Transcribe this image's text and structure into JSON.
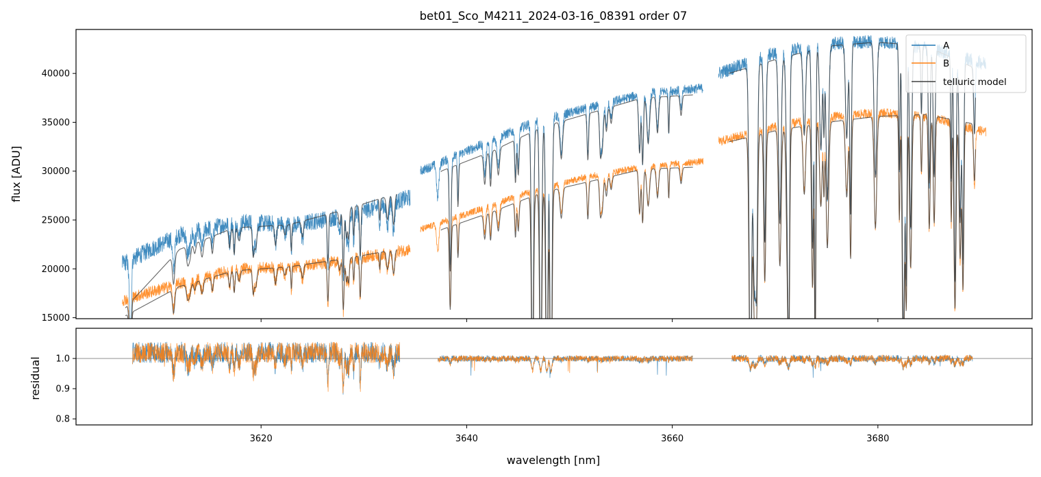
{
  "chart_data": {
    "type": "line",
    "title": "bet01_Sco_M4211_2024-03-16_08391  order 07",
    "xlabel": "wavelength [nm]",
    "xlim": [
      3602,
      3695
    ],
    "xticks": [
      3620,
      3640,
      3660,
      3680
    ],
    "xtick_labels": [
      "3620",
      "3640",
      "3660",
      "3680"
    ],
    "legend_location": "upper right",
    "colors": {
      "A": "#1f77b4",
      "B": "#ff7f0e",
      "telluric": "#404040",
      "refline": "#808080"
    },
    "panels": [
      {
        "name": "flux",
        "ylabel": "flux [ADU]",
        "ylim": [
          14900,
          44500
        ],
        "yticks": [
          15000,
          20000,
          25000,
          30000,
          35000,
          40000
        ],
        "ytick_labels": [
          "15000",
          "20000",
          "25000",
          "30000",
          "35000",
          "40000"
        ],
        "segments": [
          {
            "x0": 3606.5,
            "x1": 3634.5,
            "A": [
              20500,
              23500,
              24800,
              24500,
              25600,
              27300
            ],
            "B": [
              16800,
              18500,
              20000,
              20200,
              21000,
              22000
            ]
          },
          {
            "x0": 3635.5,
            "x1": 3663.0,
            "A": [
              30000,
              32500,
              35000,
              36500,
              38000,
              38500
            ],
            "B": [
              24000,
              26000,
              28000,
              29500,
              30500,
              31000
            ]
          },
          {
            "x0": 3664.5,
            "x1": 3690.5,
            "A": [
              40000,
              42000,
              43000,
              43300,
              42500,
              41000
            ],
            "B": [
              33000,
              34500,
              35500,
              36000,
              35500,
              34000
            ]
          }
        ],
        "telluric_model": [
          {
            "x0": 3606.8,
            "x1": 3633.2,
            "A": [
              16000,
              22000,
              24200,
              24500,
              26000,
              27700
            ],
            "B": [
              15200,
              18200,
              19800,
              20200,
              21000,
              22000
            ]
          },
          {
            "x0": 3637.5,
            "x1": 3662.0,
            "A": [
              30000,
              32000,
              34500,
              36000,
              37500,
              37800
            ],
            "B": [
              24000,
              25800,
              27800,
              29000,
              30200,
              30400
            ]
          },
          {
            "x0": 3665.5,
            "x1": 3689.5,
            "A": [
              40000,
              41500,
              42800,
              43200,
              42800,
              40500
            ],
            "B": [
              33000,
              34200,
              35000,
              35600,
              35800,
              34800
            ]
          }
        ],
        "legend": [
          "A",
          "B",
          "telluric model"
        ]
      },
      {
        "name": "residual",
        "ylabel": "residual",
        "ylim": [
          0.78,
          1.1
        ],
        "yticks": [
          0.8,
          0.9,
          1.0
        ],
        "ytick_labels": [
          "0.8",
          "0.9",
          "1.0"
        ],
        "reference_line": 1.0,
        "segments": [
          {
            "x0": 3607.5,
            "x1": 3633.5,
            "level": 1.02,
            "scatter": 0.035
          },
          {
            "x0": 3637.2,
            "x1": 3662.0,
            "level": 1.0,
            "scatter": 0.01
          },
          {
            "x0": 3665.8,
            "x1": 3689.2,
            "level": 1.0,
            "scatter": 0.012
          }
        ]
      }
    ]
  }
}
